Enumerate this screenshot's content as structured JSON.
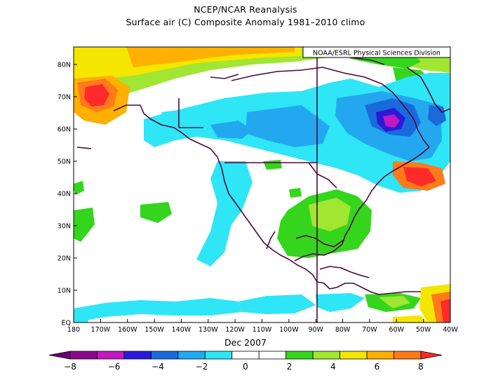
{
  "title_line1": "NCEP/NCAR Reanalysis",
  "title_line2": "Surface air (C) Composite Anomaly 1981–2010 climo",
  "credit": "NOAA/ESRL Physical Sciences Division",
  "date_label": "Dec 2007",
  "lon_ticks": [
    "180",
    "170W",
    "160W",
    "150W",
    "140W",
    "130W",
    "120W",
    "110W",
    "100W",
    "90W",
    "80W",
    "70W",
    "60W",
    "50W",
    "40W"
  ],
  "lat_ticks": [
    "EQ",
    "10N",
    "20N",
    "30N",
    "40N",
    "50N",
    "60N",
    "70N",
    "80N"
  ],
  "colorbar": {
    "labels": [
      "−8",
      "−6",
      "−4",
      "−2",
      "0",
      "2",
      "4",
      "6",
      "8"
    ],
    "colors": [
      "#6a0070",
      "#8a0a8a",
      "#c01ac0",
      "#2a1ad8",
      "#1a6adc",
      "#23a8f0",
      "#2ee6f6",
      "#ffffff",
      "#ffffff",
      "#35d51d",
      "#a0e632",
      "#f5e600",
      "#ffb000",
      "#ff7a1a",
      "#ff2a2a"
    ]
  }
}
